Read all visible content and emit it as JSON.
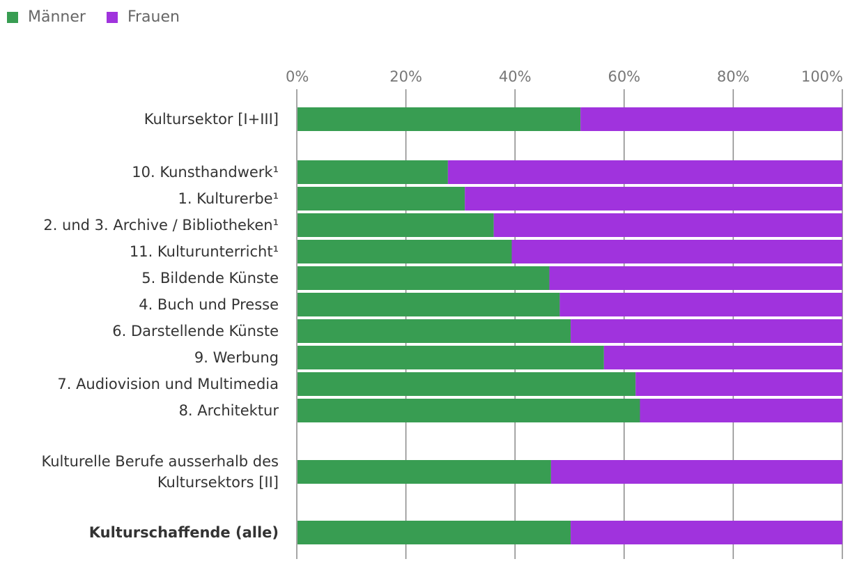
{
  "legend": {
    "men_label": "Männer",
    "women_label": "Frauen"
  },
  "colors": {
    "men": "#389d52",
    "women": "#a033dd",
    "grid": "#888888"
  },
  "chart_data": {
    "type": "bar",
    "orientation": "horizontal",
    "stacked": "percent",
    "title": "",
    "xlabel": "",
    "ylabel": "",
    "xlim": [
      0,
      100
    ],
    "x_ticks": [
      "0%",
      "20%",
      "40%",
      "60%",
      "80%",
      "100%"
    ],
    "categories": [
      [
        "Kultursektor [I+III]"
      ],
      [
        "10. Kunsthandwerk¹"
      ],
      [
        "1. Kulturerbe¹"
      ],
      [
        "2. und 3. Archive / Bibliotheken¹"
      ],
      [
        "11. Kulturunterricht¹"
      ],
      [
        "5. Bildende Künste"
      ],
      [
        "4. Buch und Presse"
      ],
      [
        "6. Darstellende Künste"
      ],
      [
        "9. Werbung"
      ],
      [
        "7. Audiovision und Multimedia"
      ],
      [
        "8. Architektur"
      ],
      [
        "Kulturelle Berufe ausserhalb des",
        "Kultursektors [II]"
      ],
      [
        "Kulturschaffende (alle)"
      ]
    ],
    "bold_categories": [
      12
    ],
    "series": [
      {
        "name": "Männer",
        "values": [
          52.0,
          27.7,
          30.8,
          36.1,
          39.4,
          46.3,
          48.2,
          50.2,
          56.3,
          62.1,
          62.9,
          46.6,
          50.2
        ]
      },
      {
        "name": "Frauen",
        "values": [
          48.0,
          72.3,
          69.2,
          63.9,
          60.6,
          53.7,
          51.8,
          49.8,
          43.7,
          37.9,
          37.1,
          53.4,
          49.8
        ]
      }
    ],
    "legend_position": "top-left"
  }
}
